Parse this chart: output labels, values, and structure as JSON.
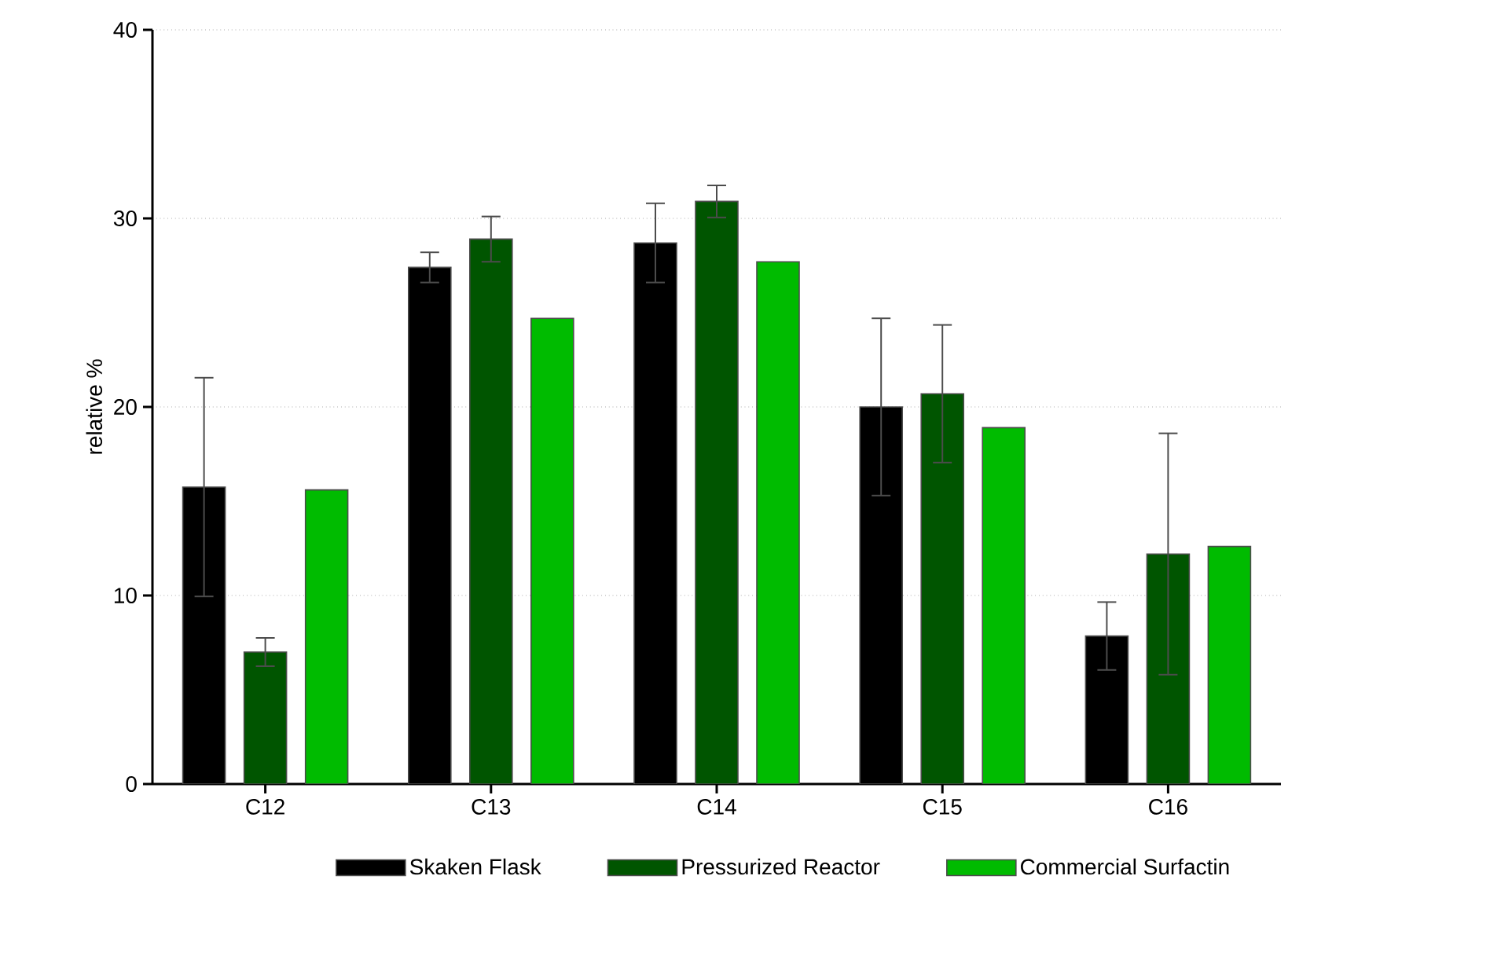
{
  "chart_data": {
    "type": "bar",
    "ylabel": "relative %",
    "categories": [
      "C12",
      "C13",
      "C14",
      "C15",
      "C16"
    ],
    "series": [
      {
        "name": "Skaken Flask",
        "color": "#000000",
        "values": [
          15.75,
          27.4,
          28.7,
          20.0,
          7.85
        ],
        "errors": [
          5.8,
          0.8,
          2.1,
          4.7,
          1.8
        ]
      },
      {
        "name": "Pressurized Reactor",
        "color": "#005500",
        "values": [
          7.0,
          28.9,
          30.9,
          20.7,
          12.2
        ],
        "errors": [
          0.75,
          1.2,
          0.85,
          3.65,
          6.4
        ]
      },
      {
        "name": "Commercial Surfactin",
        "color": "#00bb00",
        "values": [
          15.6,
          24.7,
          27.7,
          18.9,
          12.6
        ]
      }
    ],
    "ylim": [
      0,
      40
    ],
    "yticks": [
      0,
      10,
      20,
      30,
      40
    ],
    "grid": "y",
    "legend": "bottom"
  }
}
